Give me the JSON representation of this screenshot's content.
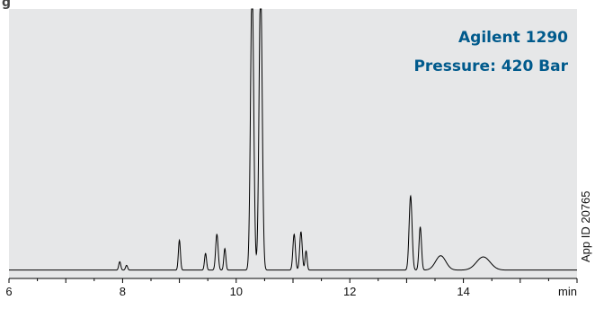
{
  "chart_data": {
    "type": "line",
    "title_fragment": "g",
    "instrument": "Agilent 1290",
    "pressure": "Pressure: 420 Bar",
    "app_id": "App ID 20765",
    "x_unit_label": "min",
    "xlim": [
      6,
      16
    ],
    "ylim": [
      0,
      1
    ],
    "x_ticks": [
      6,
      8,
      10,
      12,
      14
    ],
    "grid": false,
    "series": [
      {
        "baseline": 0.02,
        "peaks": [
          {
            "rt": 7.95,
            "height": 0.035,
            "width": 0.018
          },
          {
            "rt": 8.07,
            "height": 0.02,
            "width": 0.018
          },
          {
            "rt": 9.0,
            "height": 0.125,
            "width": 0.018
          },
          {
            "rt": 9.46,
            "height": 0.07,
            "width": 0.018
          },
          {
            "rt": 9.66,
            "height": 0.15,
            "width": 0.022
          },
          {
            "rt": 9.8,
            "height": 0.09,
            "width": 0.018
          },
          {
            "rt": 10.28,
            "height": 1.2,
            "width": 0.028
          },
          {
            "rt": 10.43,
            "height": 1.2,
            "width": 0.028
          },
          {
            "rt": 11.02,
            "height": 0.15,
            "width": 0.022
          },
          {
            "rt": 11.14,
            "height": 0.16,
            "width": 0.022
          },
          {
            "rt": 11.23,
            "height": 0.08,
            "width": 0.018
          },
          {
            "rt": 13.07,
            "height": 0.31,
            "width": 0.026
          },
          {
            "rt": 13.24,
            "height": 0.18,
            "width": 0.022
          },
          {
            "rt": 13.6,
            "height": 0.06,
            "width": 0.09
          },
          {
            "rt": 14.35,
            "height": 0.055,
            "width": 0.12
          }
        ]
      }
    ]
  },
  "colors": {
    "plot_background": "#e6e7e8",
    "trace": "#000000",
    "text_accent": "#005a8c",
    "axis": "#000000"
  }
}
